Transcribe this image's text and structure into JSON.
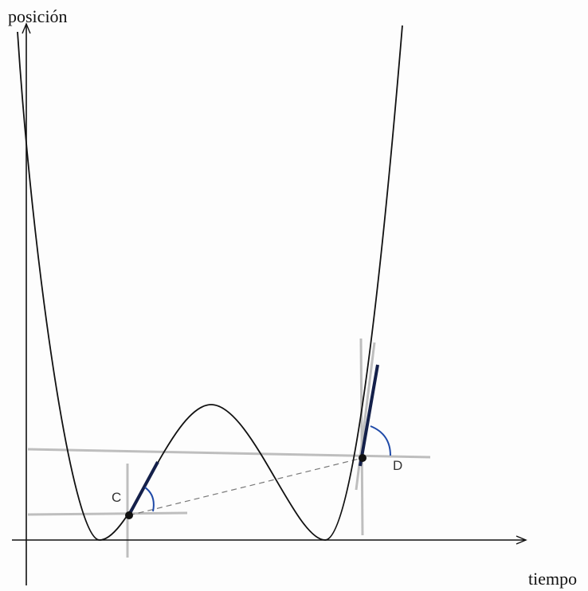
{
  "axes": {
    "y_label": "posición",
    "x_label": "tiempo"
  },
  "points": [
    {
      "label": "C"
    },
    {
      "label": "D"
    }
  ]
}
